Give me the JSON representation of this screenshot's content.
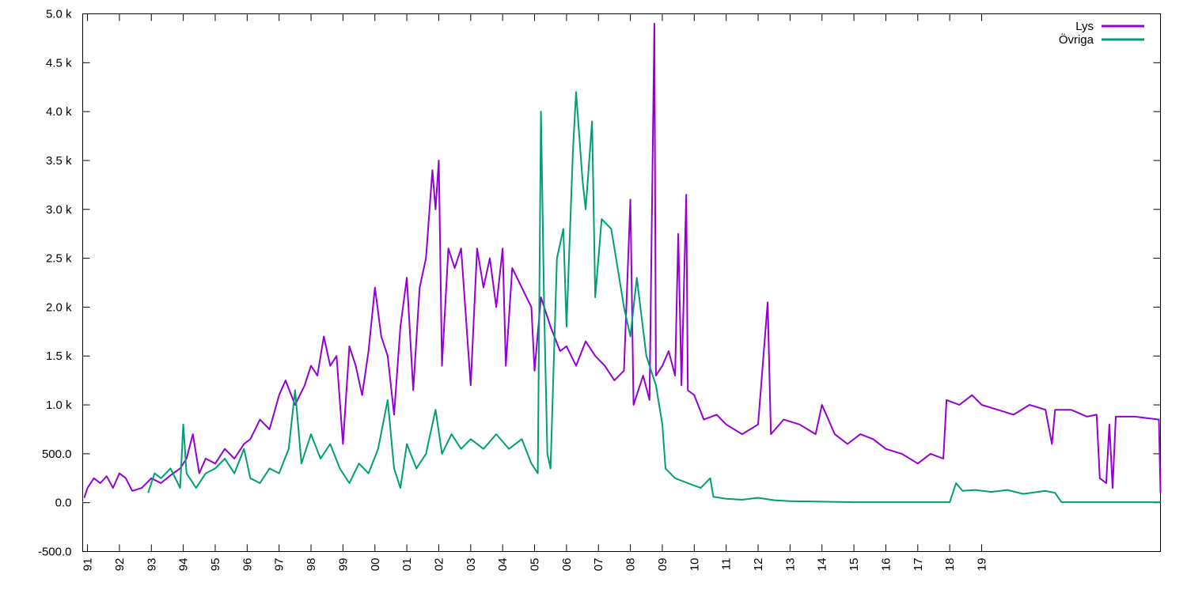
{
  "chart_data": {
    "type": "line",
    "xlim": [
      1990.85,
      2024.6
    ],
    "xticks": [
      {
        "value": 1991,
        "label": "91"
      },
      {
        "value": 1992,
        "label": "92"
      },
      {
        "value": 1993,
        "label": "93"
      },
      {
        "value": 1994,
        "label": "94"
      },
      {
        "value": 1995,
        "label": "95"
      },
      {
        "value": 1996,
        "label": "96"
      },
      {
        "value": 1997,
        "label": "97"
      },
      {
        "value": 1998,
        "label": "98"
      },
      {
        "value": 1999,
        "label": "99"
      },
      {
        "value": 2000,
        "label": "00"
      },
      {
        "value": 2001,
        "label": "01"
      },
      {
        "value": 2002,
        "label": "02"
      },
      {
        "value": 2003,
        "label": "03"
      },
      {
        "value": 2004,
        "label": "04"
      },
      {
        "value": 2005,
        "label": "05"
      },
      {
        "value": 2006,
        "label": "06"
      },
      {
        "value": 2007,
        "label": "07"
      },
      {
        "value": 2008,
        "label": "08"
      },
      {
        "value": 2009,
        "label": "09"
      },
      {
        "value": 2010,
        "label": "10"
      },
      {
        "value": 2011,
        "label": "11"
      },
      {
        "value": 2012,
        "label": "12"
      },
      {
        "value": 2013,
        "label": "13"
      },
      {
        "value": 2014,
        "label": "14"
      },
      {
        "value": 2015,
        "label": "15"
      },
      {
        "value": 2016,
        "label": "16"
      },
      {
        "value": 2017,
        "label": "17"
      },
      {
        "value": 2018,
        "label": "18"
      },
      {
        "value": 2019,
        "label": "19"
      }
    ],
    "ylim": [
      -500,
      5000
    ],
    "yticks": [
      {
        "value": -500,
        "label": "-500.0"
      },
      {
        "value": 0,
        "label": "0.0"
      },
      {
        "value": 500,
        "label": "500.0"
      },
      {
        "value": 1000,
        "label": "1.0 k"
      },
      {
        "value": 1500,
        "label": "1.5 k"
      },
      {
        "value": 2000,
        "label": "2.0 k"
      },
      {
        "value": 2500,
        "label": "2.5 k"
      },
      {
        "value": 3000,
        "label": "3.0 k"
      },
      {
        "value": 3500,
        "label": "3.5 k"
      },
      {
        "value": 4000,
        "label": "4.0 k"
      },
      {
        "value": 4500,
        "label": "4.5 k"
      },
      {
        "value": 5000,
        "label": "5.0 k"
      }
    ],
    "grid": false,
    "legend": "top-right",
    "series": [
      {
        "name": "Lys",
        "color": "#9400d3",
        "x": [
          1990.9,
          1991.0,
          1991.2,
          1991.4,
          1991.6,
          1991.8,
          1992.0,
          1992.2,
          1992.4,
          1992.7,
          1993.0,
          1993.3,
          1993.6,
          1993.9,
          1994.1,
          1994.3,
          1994.5,
          1994.7,
          1995.0,
          1995.3,
          1995.6,
          1995.9,
          1996.1,
          1996.4,
          1996.7,
          1997.0,
          1997.2,
          1997.5,
          1997.8,
          1998.0,
          1998.2,
          1998.4,
          1998.6,
          1998.8,
          1999.0,
          1999.2,
          1999.4,
          1999.6,
          1999.8,
          2000.0,
          2000.2,
          2000.4,
          2000.6,
          2000.8,
          2001.0,
          2001.2,
          2001.4,
          2001.6,
          2001.8,
          2001.9,
          2002.0,
          2002.1,
          2002.3,
          2002.5,
          2002.7,
          2003.0,
          2003.2,
          2003.4,
          2003.6,
          2003.8,
          2004.0,
          2004.1,
          2004.3,
          2004.6,
          2004.9,
          2005.0,
          2005.2,
          2005.5,
          2005.8,
          2006.0,
          2006.3,
          2006.6,
          2006.9,
          2007.2,
          2007.5,
          2007.8,
          2008.0,
          2008.1,
          2008.4,
          2008.6,
          2008.75,
          2008.8,
          2009.0,
          2009.2,
          2009.4,
          2009.5,
          2009.6,
          2009.7,
          2009.75,
          2009.8,
          2010.0,
          2010.3,
          2010.7,
          2011.0,
          2011.5,
          2012.0,
          2012.3,
          2012.4,
          2012.8,
          2013.3,
          2013.8,
          2014.0,
          2014.4,
          2014.8,
          2015.2,
          2015.6,
          2016.0,
          2016.5,
          2017.0,
          2017.4,
          2017.8,
          2017.9,
          2018.3,
          2018.7,
          2019.0,
          2019.5,
          2020.0,
          2020.5,
          2021.0,
          2021.2,
          2021.3,
          2021.8,
          2022.3,
          2022.6,
          2022.7,
          2022.9,
          2023.0,
          2023.1,
          2023.2,
          2023.8,
          2024.3,
          2024.55,
          2024.6
        ],
        "values": [
          50,
          150,
          250,
          200,
          270,
          150,
          300,
          250,
          120,
          150,
          250,
          200,
          280,
          350,
          450,
          700,
          300,
          450,
          400,
          550,
          450,
          600,
          650,
          850,
          750,
          1100,
          1250,
          1000,
          1200,
          1400,
          1300,
          1700,
          1400,
          1500,
          600,
          1600,
          1400,
          1100,
          1550,
          2200,
          1700,
          1500,
          900,
          1800,
          2300,
          1150,
          2200,
          2500,
          3400,
          3000,
          3500,
          1400,
          2600,
          2400,
          2600,
          1200,
          2600,
          2200,
          2500,
          2000,
          2600,
          1400,
          2400,
          2200,
          2000,
          1350,
          2100,
          1800,
          1550,
          1600,
          1400,
          1650,
          1500,
          1400,
          1250,
          1350,
          3100,
          1000,
          1300,
          1050,
          4900,
          1300,
          1400,
          1550,
          1300,
          2750,
          1200,
          2500,
          3150,
          1150,
          1100,
          850,
          900,
          800,
          700,
          800,
          2050,
          700,
          850,
          800,
          700,
          1000,
          700,
          600,
          700,
          650,
          550,
          500,
          400,
          500,
          450,
          1050,
          1000,
          1100,
          1000,
          950,
          900,
          1000,
          950,
          600,
          950,
          950,
          880,
          900,
          250,
          200,
          800,
          150,
          880,
          880,
          860,
          850,
          100
        ]
      },
      {
        "name": "Övriga",
        "color": "#009e73",
        "x": [
          1992.9,
          1993.1,
          1993.3,
          1993.6,
          1993.9,
          1994.0,
          1994.1,
          1994.4,
          1994.7,
          1995.0,
          1995.3,
          1995.6,
          1995.9,
          1996.1,
          1996.4,
          1996.7,
          1997.0,
          1997.3,
          1997.5,
          1997.7,
          1998.0,
          1998.3,
          1998.6,
          1998.9,
          1999.2,
          1999.5,
          1999.8,
          2000.1,
          2000.4,
          2000.6,
          2000.8,
          2001.0,
          2001.3,
          2001.6,
          2001.9,
          2002.1,
          2002.4,
          2002.7,
          2003.0,
          2003.4,
          2003.8,
          2004.2,
          2004.6,
          2004.9,
          2005.1,
          2005.2,
          2005.3,
          2005.4,
          2005.5,
          2005.7,
          2005.9,
          2006.0,
          2006.2,
          2006.3,
          2006.5,
          2006.6,
          2006.8,
          2006.9,
          2007.1,
          2007.4,
          2007.6,
          2007.8,
          2008.0,
          2008.2,
          2008.5,
          2008.8,
          2009.0,
          2009.1,
          2009.4,
          2009.8,
          2010.2,
          2010.5,
          2010.6,
          2011.0,
          2011.5,
          2012.0,
          2012.5,
          2013.0,
          2014.0,
          2015.0,
          2016.0,
          2017.0,
          2018.0,
          2018.2,
          2018.4,
          2018.8,
          2019.3,
          2019.8,
          2020.3,
          2021.0,
          2021.3,
          2021.5,
          2024.6
        ],
        "values": [
          100,
          300,
          250,
          350,
          150,
          800,
          300,
          150,
          300,
          350,
          450,
          300,
          550,
          250,
          200,
          350,
          300,
          550,
          1150,
          400,
          700,
          450,
          600,
          350,
          200,
          400,
          300,
          550,
          1050,
          350,
          150,
          600,
          350,
          500,
          950,
          500,
          700,
          550,
          650,
          550,
          700,
          550,
          650,
          400,
          300,
          4000,
          2000,
          500,
          350,
          2500,
          2800,
          1800,
          3600,
          4200,
          3300,
          3000,
          3900,
          2100,
          2900,
          2800,
          2400,
          2000,
          1700,
          2300,
          1500,
          1200,
          800,
          350,
          250,
          200,
          150,
          250,
          60,
          40,
          30,
          50,
          25,
          15,
          10,
          5,
          5,
          5,
          5,
          200,
          120,
          130,
          110,
          130,
          90,
          120,
          100,
          5,
          5
        ]
      }
    ]
  }
}
